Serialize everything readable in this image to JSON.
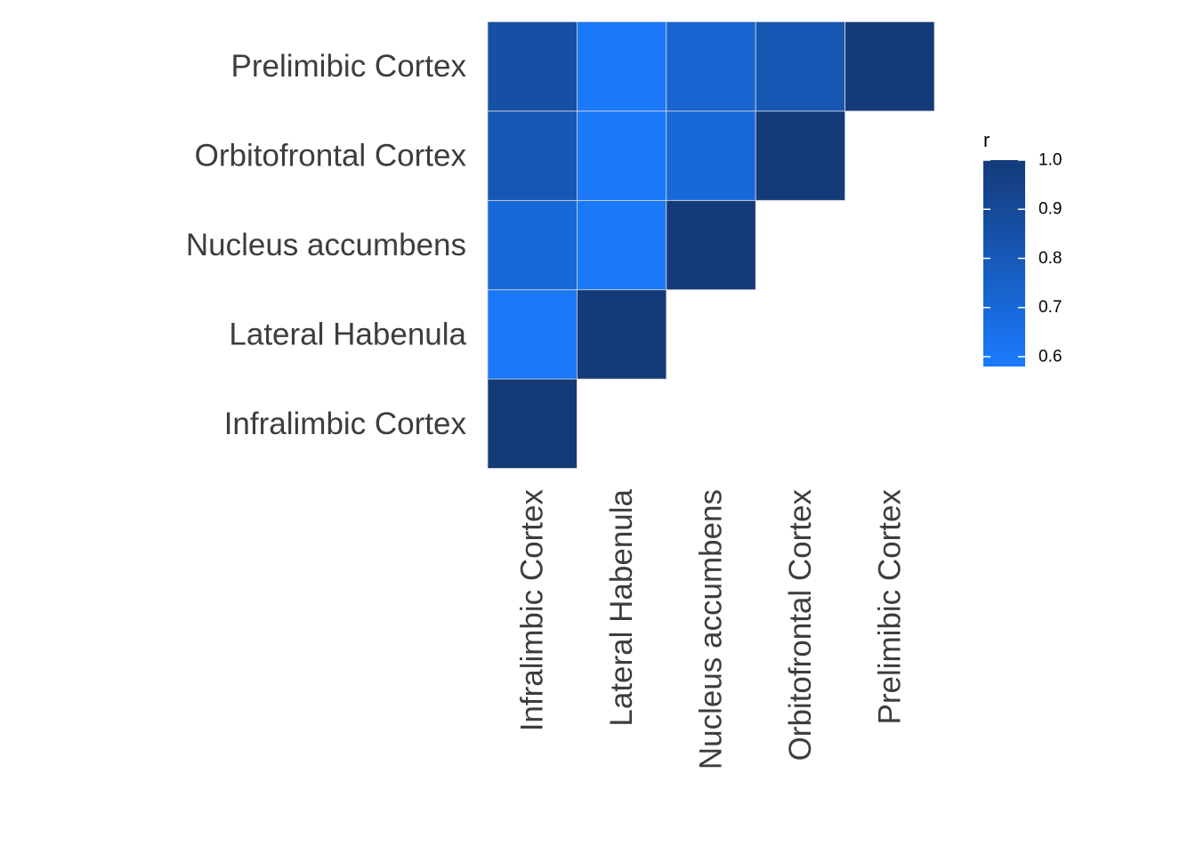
{
  "chart_data": {
    "type": "heatmap",
    "title": "",
    "xlabel": "",
    "ylabel": "",
    "x_categories": [
      "Infralimbic Cortex",
      "Lateral Habenula",
      "Nucleus accumbens",
      "Orbitofrontal Cortex",
      "Prelimibic Cortex"
    ],
    "y_categories": [
      "Infralimbic Cortex",
      "Lateral Habenula",
      "Nucleus accumbens",
      "Orbitofrontal Cortex",
      "Prelimibic Cortex"
    ],
    "triangle": "upper",
    "cells": [
      {
        "x": "Infralimbic Cortex",
        "y": "Infralimbic Cortex",
        "value": 1.0
      },
      {
        "x": "Infralimbic Cortex",
        "y": "Lateral Habenula",
        "value": 0.6
      },
      {
        "x": "Lateral Habenula",
        "y": "Lateral Habenula",
        "value": 1.0
      },
      {
        "x": "Infralimbic Cortex",
        "y": "Nucleus accumbens",
        "value": 0.7
      },
      {
        "x": "Lateral Habenula",
        "y": "Nucleus accumbens",
        "value": 0.6
      },
      {
        "x": "Nucleus accumbens",
        "y": "Nucleus accumbens",
        "value": 1.0
      },
      {
        "x": "Infralimbic Cortex",
        "y": "Orbitofrontal Cortex",
        "value": 0.82
      },
      {
        "x": "Lateral Habenula",
        "y": "Orbitofrontal Cortex",
        "value": 0.6
      },
      {
        "x": "Nucleus accumbens",
        "y": "Orbitofrontal Cortex",
        "value": 0.7
      },
      {
        "x": "Orbitofrontal Cortex",
        "y": "Orbitofrontal Cortex",
        "value": 1.0
      },
      {
        "x": "Infralimbic Cortex",
        "y": "Prelimibic Cortex",
        "value": 0.86
      },
      {
        "x": "Lateral Habenula",
        "y": "Prelimibic Cortex",
        "value": 0.6
      },
      {
        "x": "Nucleus accumbens",
        "y": "Prelimibic Cortex",
        "value": 0.72
      },
      {
        "x": "Orbitofrontal Cortex",
        "y": "Prelimibic Cortex",
        "value": 0.82
      },
      {
        "x": "Prelimibic Cortex",
        "y": "Prelimibic Cortex",
        "value": 1.0
      }
    ],
    "legend": {
      "title": "r",
      "position": "right",
      "range": [
        0.58,
        1.0
      ],
      "ticks": [
        1.0,
        0.9,
        0.8,
        0.7,
        0.6
      ],
      "tick_labels": [
        "1.0",
        "0.9",
        "0.8",
        "0.7",
        "0.6"
      ],
      "low_color": "#1a7bff",
      "high_color": "#143a78"
    },
    "grid": false
  }
}
